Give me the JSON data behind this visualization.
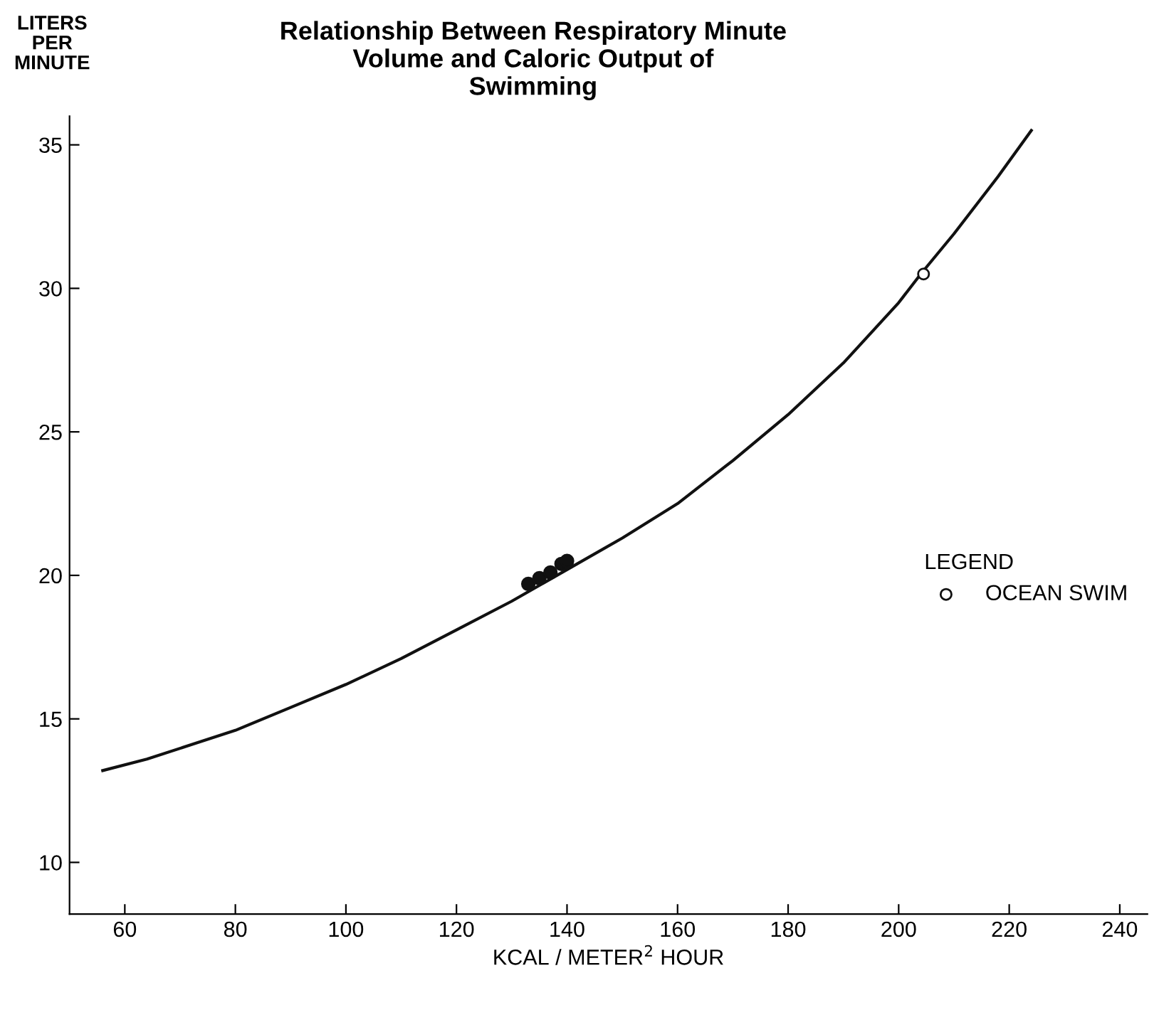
{
  "chart_data": {
    "type": "line",
    "title": "Relationship Between Respiratory Minute\nVolume and Caloric Output of\nSwimming",
    "xlabel": "KCAL / METER$^{2}$ HOUR",
    "ylabel": "LITERS\nPER\nMINUTE",
    "legend_title": "LEGEND",
    "legend": "right",
    "xlim": [
      50,
      245
    ],
    "ylim": [
      8.2,
      36
    ],
    "xticks": [
      60,
      80,
      100,
      120,
      140,
      160,
      180,
      200,
      220,
      240
    ],
    "yticks": [
      10,
      15,
      20,
      25,
      30,
      35
    ],
    "grid": false,
    "series": [
      {
        "color": "#111111",
        "x": [
          56,
          64,
          72,
          80,
          90,
          100,
          110,
          120,
          130,
          140,
          150,
          160,
          170,
          180,
          190,
          200,
          204,
          210,
          218,
          224
        ],
        "values": [
          13.2,
          13.6,
          14.1,
          14.6,
          15.4,
          16.2,
          17.1,
          18.1,
          19.1,
          20.2,
          21.3,
          22.5,
          24,
          25.6,
          27.4,
          29.5,
          30.5,
          31.9,
          33.9,
          35.5
        ],
        "marker": "none"
      },
      {
        "type": "scatter",
        "color": "#111111",
        "x": [
          133,
          135,
          137,
          139,
          140
        ],
        "values": [
          19.7,
          19.9,
          20.1,
          20.4,
          20.5
        ],
        "marker": "circle"
      },
      {
        "type": "scatter",
        "name": "OCEAN SWIM",
        "color": "#111111",
        "x": [
          204.5
        ],
        "values": [
          30.5
        ],
        "marker": "circle"
      }
    ]
  }
}
